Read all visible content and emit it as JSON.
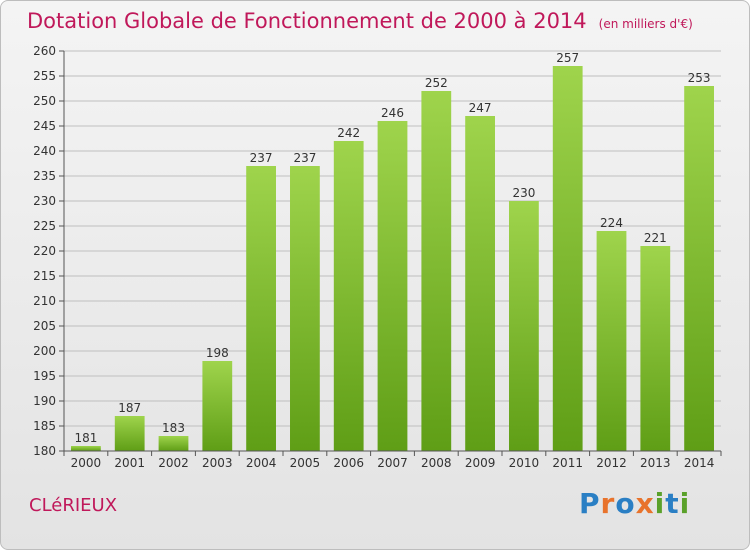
{
  "title": "Dotation Globale de Fonctionnement de 2000 à 2014",
  "subtitle": "(en milliers d'€)",
  "commune": "CLéRIEUX",
  "logo": {
    "text": "Proxiti",
    "letters": [
      {
        "ch": "P",
        "color": "#2a7fc4"
      },
      {
        "ch": "r",
        "color": "#e8732c"
      },
      {
        "ch": "o",
        "color": "#2a7fc4"
      },
      {
        "ch": "x",
        "color": "#e8732c"
      },
      {
        "ch": "i",
        "color": "#5aa12a"
      },
      {
        "ch": "t",
        "color": "#2a7fc4"
      },
      {
        "ch": "i",
        "color": "#5aa12a"
      }
    ]
  },
  "colors": {
    "title": "#c0185a",
    "bar_light": "#9fd44c",
    "bar_dark": "#5f9e16",
    "grid": "#bfbfbf"
  },
  "chart_data": {
    "type": "bar",
    "categories": [
      "2000",
      "2001",
      "2002",
      "2003",
      "2004",
      "2005",
      "2006",
      "2007",
      "2008",
      "2009",
      "2010",
      "2011",
      "2012",
      "2013",
      "2014"
    ],
    "values": [
      181,
      187,
      183,
      198,
      237,
      237,
      242,
      246,
      252,
      247,
      230,
      257,
      224,
      221,
      253
    ],
    "ylim": [
      180,
      260
    ],
    "yticks": [
      180,
      185,
      190,
      195,
      200,
      205,
      210,
      215,
      220,
      225,
      230,
      235,
      240,
      245,
      250,
      255,
      260
    ],
    "grid": true,
    "data_labels": true
  }
}
